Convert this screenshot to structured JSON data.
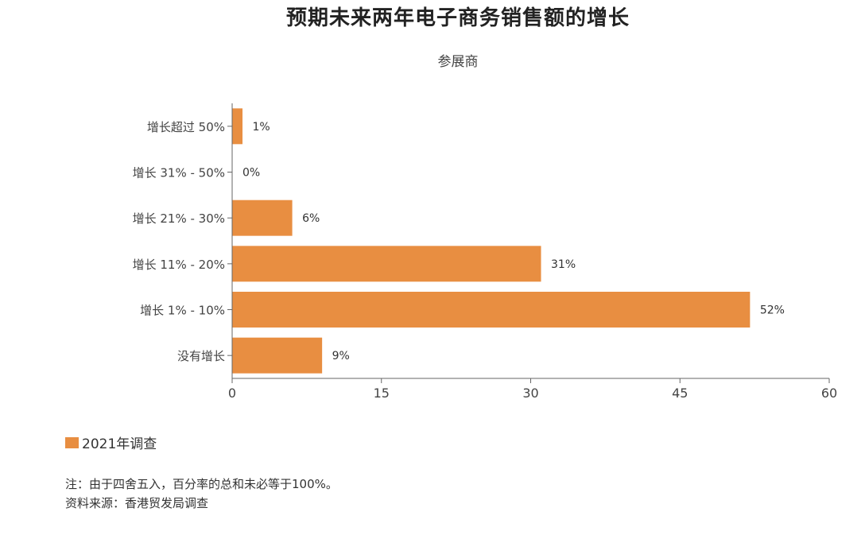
{
  "chart_data": {
    "type": "bar",
    "orientation": "horizontal",
    "title": "预期未来两年电子商务销售额的增长",
    "subtitle": "参展商",
    "categories": [
      "增长超过 50%",
      "增长 31% - 50%",
      "增长 21% - 30%",
      "增长 11% - 20%",
      "增长 1% - 10%",
      "没有增长"
    ],
    "series": [
      {
        "name": "2021年调查",
        "values": [
          1,
          0,
          6,
          31,
          52,
          9
        ],
        "color": "#E88E41"
      }
    ],
    "data_labels": [
      "1%",
      "0%",
      "6%",
      "31%",
      "52%",
      "9%"
    ],
    "xlim": [
      0,
      60
    ],
    "xticks": [
      0,
      15,
      30,
      45,
      60
    ],
    "xtick_labels": [
      "0",
      "15",
      "30",
      "45",
      "60"
    ],
    "grid": false,
    "legend_position": "bottom-left"
  },
  "notes": [
    "注：由于四舍五入，百分率的总和未必等于100%。",
    "资料来源：香港贸发局调查"
  ]
}
